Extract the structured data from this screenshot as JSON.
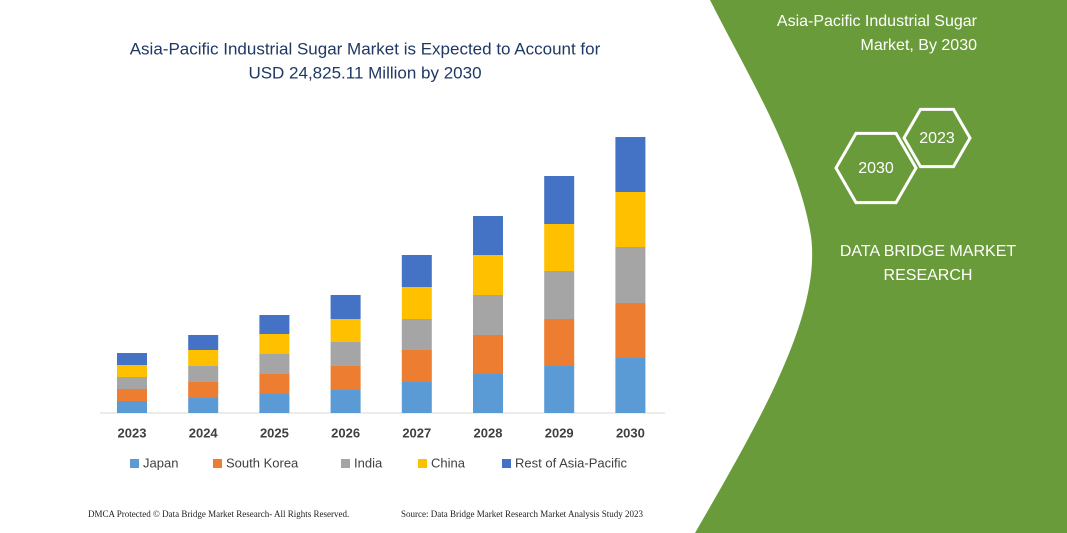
{
  "chart_data": {
    "type": "stacked_bar",
    "title": [
      "Asia-Pacific Industrial Sugar Market is Expected to Account for",
      "USD 24,825.11 Million by 2030"
    ],
    "categories": [
      "2023",
      "2024",
      "2025",
      "2026",
      "2027",
      "2028",
      "2029",
      "2030"
    ],
    "series": [
      {
        "name": "Japan",
        "color": "#5b9bd5",
        "values": [
          12,
          15,
          19,
          23,
          31,
          39,
          47,
          55
        ]
      },
      {
        "name": "South Korea",
        "color": "#ed7d31",
        "values": [
          12,
          16,
          20,
          24,
          32,
          39,
          47,
          55
        ]
      },
      {
        "name": "India",
        "color": "#a5a5a5",
        "values": [
          12,
          16,
          20,
          24,
          31,
          40,
          48,
          56
        ]
      },
      {
        "name": "China",
        "color": "#ffc000",
        "values": [
          12,
          16,
          20,
          23,
          32,
          40,
          47,
          55
        ]
      },
      {
        "name": "Rest of Asia-Pacific",
        "color": "#4472c4",
        "values": [
          12,
          15,
          19,
          24,
          32,
          39,
          48,
          55
        ]
      }
    ],
    "legend": "bottom"
  },
  "panel": {
    "heading": [
      "Asia-Pacific Industrial Sugar",
      "Market, By 2030"
    ],
    "hexagons": [
      "2023",
      "2030"
    ],
    "brand": [
      "DATA BRIDGE MARKET",
      "RESEARCH"
    ]
  },
  "footer": {
    "left": "DMCA Protected © Data Bridge Market Research- All Rights Reserved.",
    "right": "Source: Data Bridge Market Research Market Analysis Study 2023"
  }
}
